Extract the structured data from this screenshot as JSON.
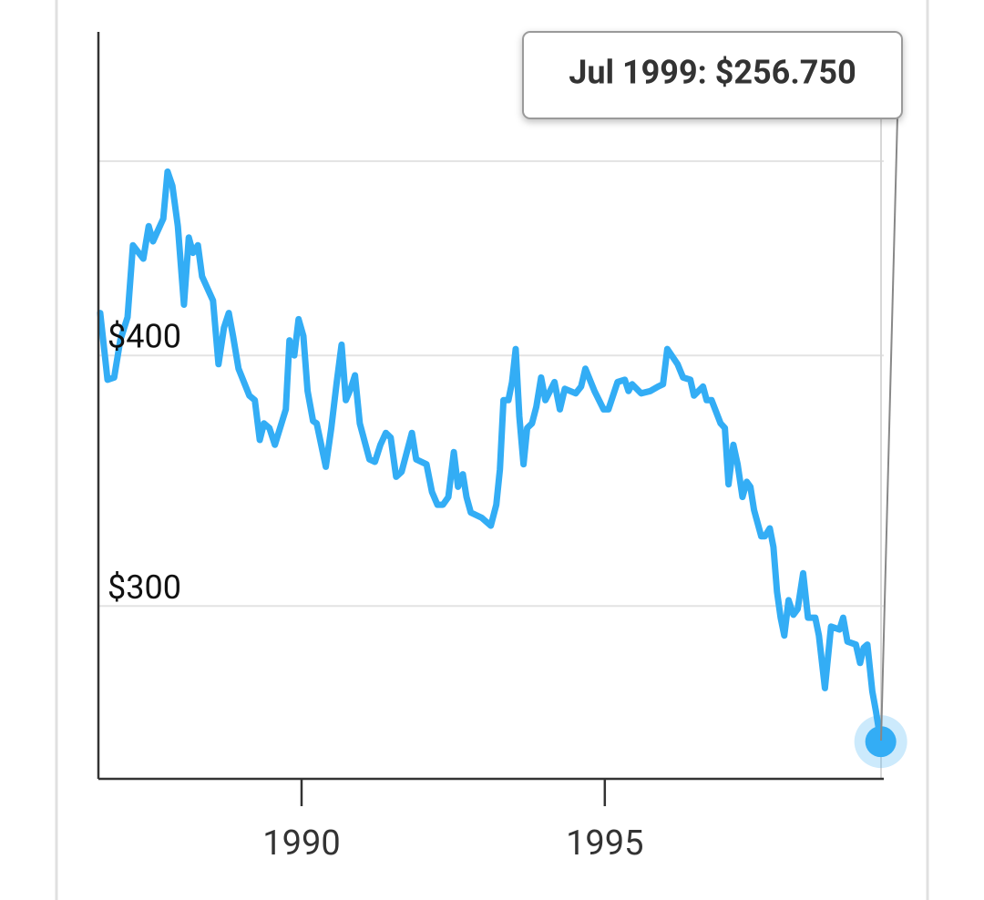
{
  "chart_data": {
    "type": "line",
    "tooltip": "Jul 1999: $256.750",
    "x": [
      1986.68,
      1986.8,
      1986.91,
      1987.01,
      1987.13,
      1987.22,
      1987.39,
      1987.48,
      1987.55,
      1987.72,
      1987.79,
      1987.87,
      1987.96,
      1988.06,
      1988.14,
      1988.21,
      1988.29,
      1988.36,
      1988.54,
      1988.63,
      1988.72,
      1988.8,
      1988.87,
      1988.96,
      1989.14,
      1989.23,
      1989.31,
      1989.38,
      1989.47,
      1989.56,
      1989.74,
      1989.8,
      1989.88,
      1989.95,
      1990.03,
      1990.1,
      1990.19,
      1990.25,
      1990.4,
      1990.49,
      1990.58,
      1990.66,
      1990.73,
      1990.81,
      1990.88,
      1990.96,
      1991.12,
      1991.21,
      1991.3,
      1991.39,
      1991.47,
      1991.56,
      1991.65,
      1991.82,
      1991.89,
      1992.06,
      1992.15,
      1992.24,
      1992.33,
      1992.42,
      1992.51,
      1992.58,
      1992.66,
      1992.72,
      1992.79,
      1992.97,
      1993.12,
      1993.21,
      1993.27,
      1993.33,
      1993.41,
      1993.47,
      1993.53,
      1993.59,
      1993.66,
      1993.72,
      1993.8,
      1993.87,
      1993.95,
      1994.02,
      1994.17,
      1994.26,
      1994.34,
      1994.52,
      1994.61,
      1994.68,
      1994.83,
      1994.98,
      1995.06,
      1995.21,
      1995.33,
      1995.39,
      1995.45,
      1995.6,
      1995.75,
      1995.88,
      1995.96,
      1996.03,
      1996.2,
      1996.29,
      1996.41,
      1996.47,
      1996.62,
      1996.68,
      1996.76,
      1996.91,
      1996.98,
      1997.04,
      1997.12,
      1997.19,
      1997.27,
      1997.34,
      1997.4,
      1997.46,
      1997.58,
      1997.64,
      1997.72,
      1997.78,
      1997.84,
      1997.9,
      1997.96,
      1998.03,
      1998.11,
      1998.18,
      1998.27,
      1998.35,
      1998.47,
      1998.53,
      1998.63,
      1998.73,
      1998.87,
      1998.93,
      1999.0,
      1999.14,
      1999.21,
      1999.27,
      1999.33,
      1999.41,
      1999.47,
      1999.55
    ],
    "values": [
      420,
      389,
      390,
      407,
      418,
      454,
      447,
      464,
      456,
      468,
      494,
      486,
      464,
      424,
      458,
      450,
      454,
      438,
      426,
      396,
      413,
      420,
      409,
      394,
      382,
      380,
      363,
      370,
      368,
      361,
      376,
      407,
      400,
      417,
      409,
      384,
      371,
      370,
      352,
      368,
      388,
      405,
      380,
      385,
      391,
      370,
      355,
      354,
      361,
      366,
      364,
      348,
      350,
      366,
      355,
      353,
      342,
      337,
      337,
      340,
      358,
      344,
      349,
      340,
      334,
      332,
      329,
      337,
      351,
      380,
      380,
      388,
      403,
      373,
      353,
      368,
      370,
      377,
      390,
      380,
      388,
      376,
      385,
      383,
      386,
      394,
      384,
      376,
      376,
      388,
      389,
      384,
      387,
      383,
      384,
      386,
      387,
      403,
      396,
      390,
      389,
      382,
      386,
      380,
      380,
      370,
      368,
      345,
      361,
      353,
      340,
      346,
      344,
      335,
      325,
      325,
      328,
      321,
      305,
      296,
      290,
      302,
      297,
      299,
      311.5,
      296,
      296,
      290,
      273,
      293,
      292,
      296,
      288,
      287,
      281,
      286,
      287,
      272,
      266,
      256.75
    ],
    "color": "#33adf5",
    "log_y": true,
    "grid": true,
    "xlim": [
      1986.65,
      1999.6
    ],
    "xticks": [
      1990,
      1995
    ],
    "ylim": [
      246,
      580
    ],
    "yticks": [
      {
        "value": 300,
        "label": "$300"
      },
      {
        "value": 400,
        "label": "$400"
      },
      {
        "value": 500,
        "label": null
      }
    ]
  }
}
